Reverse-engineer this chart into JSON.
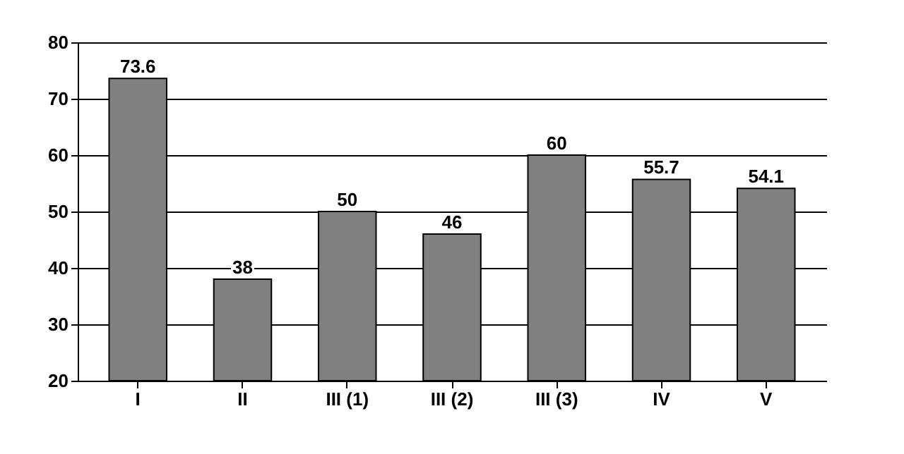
{
  "chart_data": {
    "type": "bar",
    "categories": [
      "I",
      "II",
      "III (1)",
      "III (2)",
      "III (3)",
      "IV",
      "V"
    ],
    "values": [
      73.6,
      38,
      50,
      46,
      60,
      55.7,
      54.1
    ],
    "color": "#808080",
    "ylim": [
      20,
      80
    ],
    "yticks": [
      20,
      30,
      40,
      50,
      60,
      70,
      80
    ],
    "grid": "y",
    "data_labels": true
  }
}
